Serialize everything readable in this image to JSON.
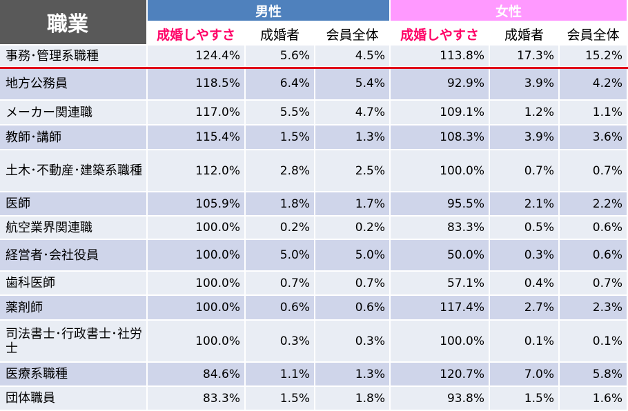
{
  "chart_data": {
    "type": "table",
    "header": {
      "occupation": "職業",
      "male": "男性",
      "female": "女性",
      "columns": [
        "成婚しやすさ",
        "成婚者",
        "会員全体",
        "成婚しやすさ",
        "成婚者",
        "会員全体"
      ]
    },
    "rows": [
      {
        "occupation": "事務･管理系職種",
        "values": [
          "124.4%",
          "5.6%",
          "4.5%",
          "113.8%",
          "17.3%",
          "15.2%"
        ]
      },
      {
        "occupation": "地方公務員",
        "values": [
          "118.5%",
          "6.4%",
          "5.4%",
          "92.9%",
          "3.9%",
          "4.2%"
        ]
      },
      {
        "occupation": "メーカー関連職",
        "values": [
          "117.0%",
          "5.5%",
          "4.7%",
          "109.1%",
          "1.2%",
          "1.1%"
        ]
      },
      {
        "occupation": "教師･講師",
        "values": [
          "115.4%",
          "1.5%",
          "1.3%",
          "108.3%",
          "3.9%",
          "3.6%"
        ]
      },
      {
        "occupation": "土木･不動産･建築系職種",
        "values": [
          "112.0%",
          "2.8%",
          "2.5%",
          "100.0%",
          "0.7%",
          "0.7%"
        ]
      },
      {
        "occupation": "医師",
        "values": [
          "105.9%",
          "1.8%",
          "1.7%",
          "95.5%",
          "2.1%",
          "2.2%"
        ]
      },
      {
        "occupation": "航空業界関連職",
        "values": [
          "100.0%",
          "0.2%",
          "0.2%",
          "83.3%",
          "0.5%",
          "0.6%"
        ]
      },
      {
        "occupation": "経営者･会社役員",
        "values": [
          "100.0%",
          "5.0%",
          "5.0%",
          "50.0%",
          "0.3%",
          "0.6%"
        ]
      },
      {
        "occupation": "歯科医師",
        "values": [
          "100.0%",
          "0.7%",
          "0.7%",
          "57.1%",
          "0.4%",
          "0.7%"
        ]
      },
      {
        "occupation": "薬剤師",
        "values": [
          "100.0%",
          "0.6%",
          "0.6%",
          "117.4%",
          "2.7%",
          "2.3%"
        ]
      },
      {
        "occupation": "司法書士･行政書士･社労士",
        "values": [
          "100.0%",
          "0.3%",
          "0.3%",
          "100.0%",
          "0.1%",
          "0.1%"
        ]
      },
      {
        "occupation": "医療系職種",
        "values": [
          "84.6%",
          "1.1%",
          "1.3%",
          "120.7%",
          "7.0%",
          "5.8%"
        ]
      },
      {
        "occupation": "団体職員",
        "values": [
          "83.3%",
          "1.5%",
          "1.8%",
          "93.8%",
          "1.5%",
          "1.6%"
        ]
      }
    ],
    "colors": {
      "occupation_header": "#595959",
      "male_header": "#4f81bd",
      "female_header": "#ff99ff",
      "highlight_text": "#ff0066",
      "row_light": "#e9edf4",
      "row_dark": "#cfd5ea",
      "underline": "#e0001a"
    }
  }
}
